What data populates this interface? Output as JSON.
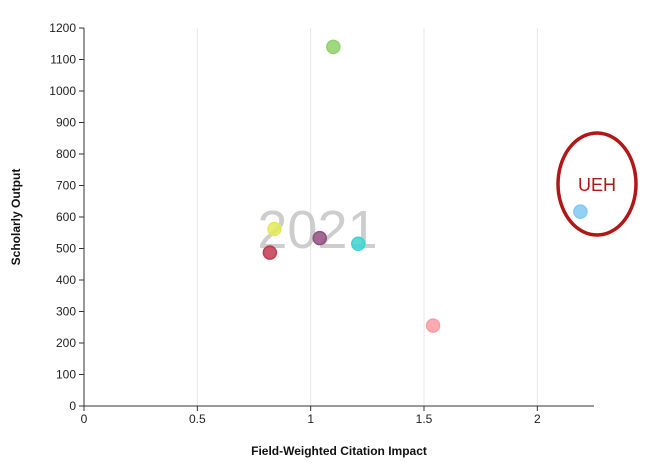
{
  "chart_data": {
    "type": "scatter",
    "title": "",
    "xlabel": "Field-Weighted Citation Impact",
    "ylabel": "Scholarly Output",
    "xlim": [
      0,
      2.25
    ],
    "ylim": [
      0,
      1200
    ],
    "xticks": [
      0,
      0.5,
      1,
      1.5,
      2
    ],
    "xtick_labels": [
      "0",
      "0.5",
      "1",
      "1.5",
      "2"
    ],
    "yticks": [
      0,
      100,
      200,
      300,
      400,
      500,
      600,
      700,
      800,
      900,
      1000,
      1100,
      1200
    ],
    "ytick_labels": [
      "0",
      "100",
      "200",
      "300",
      "400",
      "500",
      "600",
      "700",
      "800",
      "900",
      "1000",
      "1100",
      "1200"
    ],
    "grid": "vertical",
    "year_label": "2021",
    "points": [
      {
        "x": 1.1,
        "y": 1140,
        "color": "#8fd16a"
      },
      {
        "x": 0.84,
        "y": 562,
        "color": "#e3ea5a"
      },
      {
        "x": 0.82,
        "y": 487,
        "color": "#c23a52"
      },
      {
        "x": 1.04,
        "y": 533,
        "color": "#93507e"
      },
      {
        "x": 1.21,
        "y": 515,
        "color": "#3fd4d0"
      },
      {
        "x": 1.54,
        "y": 255,
        "color": "#ff9aa2"
      },
      {
        "x": 2.19,
        "y": 617,
        "color": "#7fc8f2"
      }
    ],
    "annotation": {
      "text": "UEH",
      "color": "#b01818"
    }
  }
}
